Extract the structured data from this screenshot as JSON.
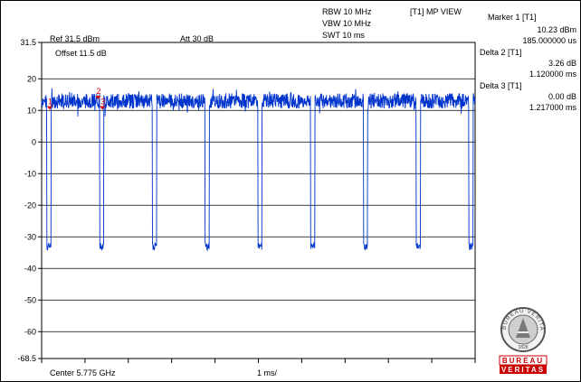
{
  "header": {
    "rbw": "RBW 10 MHz",
    "vbw": "VBW 10 MHz",
    "swt": "SWT 10 ms",
    "view": "[T1] MP VIEW"
  },
  "instrument": {
    "ref_level": "Ref 31.5 dBm",
    "attenuation": "Att  30 dB",
    "offset": "Offset 11.5 dB",
    "center": "Center 5.775 GHz",
    "span_per_div": "1 ms/"
  },
  "markers": [
    {
      "title": "Marker 1 [T1]",
      "level": "10.23 dBm",
      "time": "185.000000 us",
      "label": "1"
    },
    {
      "title": "Delta 2 [T1]",
      "level": "3.26 dB",
      "time": "1.120000 ms",
      "label": "2"
    },
    {
      "title": "Delta 3 [T1]",
      "level": "0.00 dB",
      "time": "1.217000 ms",
      "label": "3"
    }
  ],
  "logo": {
    "top_text": "BUREAU VERITAS",
    "year": "1828",
    "bottom_line1": "BUREAU",
    "bottom_line2": "VERITAS"
  },
  "colors": {
    "trace": "#0033cc",
    "marker": "#dd0000",
    "grid": "#000000",
    "brand": "#cc0000"
  },
  "chart_data": {
    "type": "line",
    "x_unit": "ms",
    "y_unit": "dBm",
    "xlim": [
      0,
      10
    ],
    "ylim": [
      -68.5,
      31.5
    ],
    "y_ticks": [
      31.5,
      20,
      10,
      0,
      -10,
      -20,
      -30,
      -40,
      -50,
      -60,
      -68.5
    ],
    "y_tick_labels": [
      "31.5",
      "20",
      "10",
      "0",
      "-10",
      "-20",
      "-30",
      "-40",
      "-50",
      "-60",
      "-68.5"
    ],
    "grid": true,
    "series": [
      {
        "on_level": 13,
        "noise": 1.2,
        "off_level": -33,
        "burst_period": 1.217,
        "off_start": 0.12,
        "off_duration": 0.097
      }
    ],
    "marker_points": [
      {
        "label": "1",
        "x": 0.185,
        "y": 10.23
      },
      {
        "label": "2",
        "x": 1.305,
        "y": 13.49
      },
      {
        "label": "3",
        "x": 1.402,
        "y": 10.23
      }
    ]
  }
}
